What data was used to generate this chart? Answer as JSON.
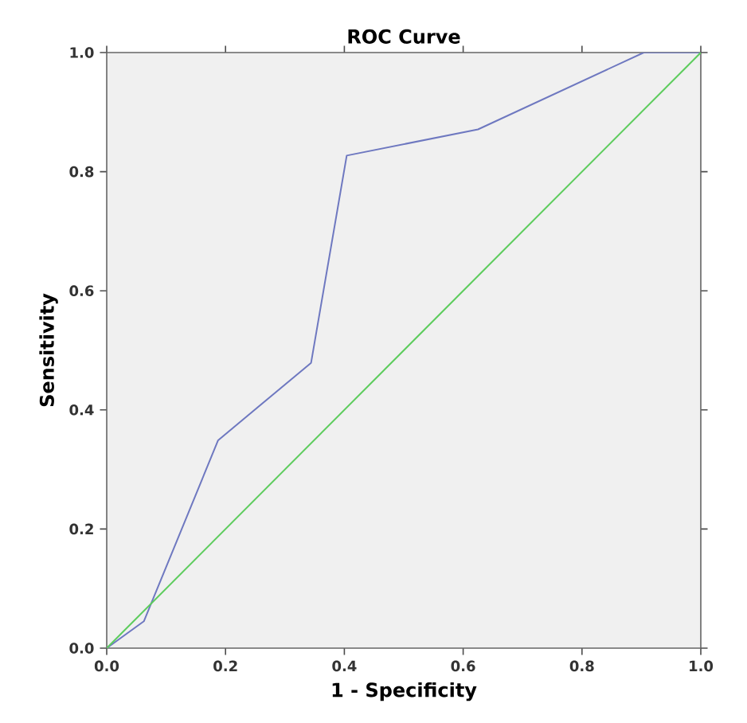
{
  "chart_data": {
    "type": "line",
    "title": "ROC Curve",
    "xlabel": "1 - Specificity",
    "ylabel": "Sensitivity",
    "xlim": [
      0,
      1
    ],
    "ylim": [
      0,
      1
    ],
    "xticks": [
      {
        "value": 0,
        "label": "0.0"
      },
      {
        "value": 0.2,
        "label": "0.2"
      },
      {
        "value": 0.4,
        "label": "0.4"
      },
      {
        "value": 0.6,
        "label": "0.6"
      },
      {
        "value": 0.8,
        "label": "0.8"
      },
      {
        "value": 1,
        "label": "1.0"
      }
    ],
    "yticks": [
      {
        "value": 0,
        "label": "0.0"
      },
      {
        "value": 0.2,
        "label": "0.2"
      },
      {
        "value": 0.4,
        "label": "0.4"
      },
      {
        "value": 0.6,
        "label": "0.6"
      },
      {
        "value": 0.8,
        "label": "0.8"
      },
      {
        "value": 1,
        "label": "1.0"
      }
    ],
    "series": [
      {
        "color": "#6e78c0",
        "x": [
          0,
          0.0625,
          0.1875,
          0.344,
          0.404,
          0.625,
          0.904,
          1
        ],
        "values": [
          0,
          0.045,
          0.349,
          0.479,
          0.827,
          0.871,
          1,
          1
        ]
      },
      {
        "color": "#5ccc5c",
        "x": [
          0,
          1
        ],
        "values": [
          0,
          1
        ]
      }
    ]
  }
}
